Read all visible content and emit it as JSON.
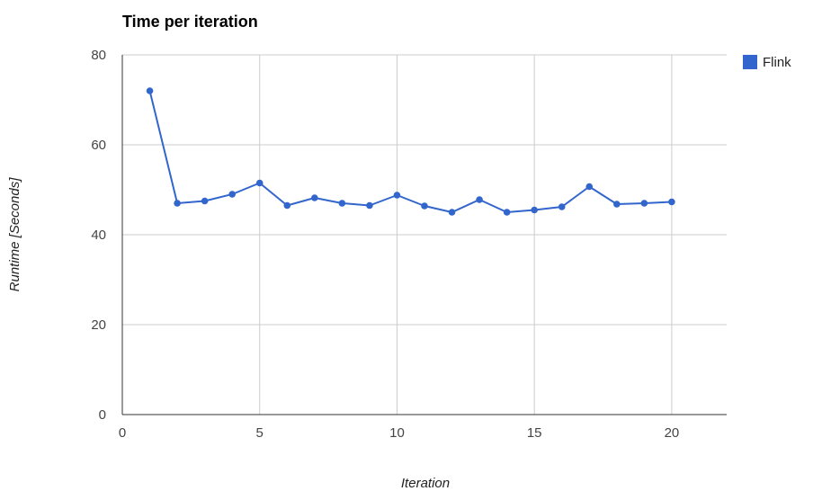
{
  "chart_data": {
    "type": "line",
    "title": "Time per iteration",
    "xlabel": "Iteration",
    "ylabel": "Runtime [Seconds]",
    "xlim": [
      0,
      22
    ],
    "ylim": [
      0,
      80
    ],
    "x_ticks": [
      0,
      5,
      10,
      15,
      20
    ],
    "y_ticks": [
      0,
      20,
      40,
      60,
      80
    ],
    "grid": true,
    "legend_position": "top-right",
    "series": [
      {
        "name": "Flink",
        "color": "#3366cc",
        "x": [
          1,
          2,
          3,
          4,
          5,
          6,
          7,
          8,
          9,
          10,
          11,
          12,
          13,
          14,
          15,
          16,
          17,
          18,
          19,
          20
        ],
        "y": [
          72,
          47,
          47.5,
          49,
          51.5,
          46.5,
          48.2,
          47,
          46.5,
          48.8,
          46.4,
          45,
          47.8,
          45,
          45.5,
          46.2,
          50.7,
          46.8,
          47,
          47.3
        ]
      }
    ]
  }
}
